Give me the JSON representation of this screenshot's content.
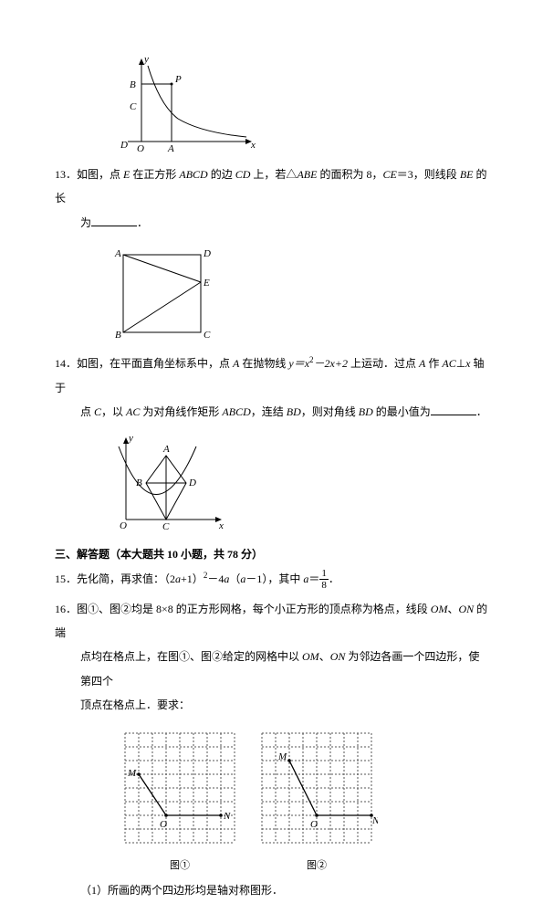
{
  "fig12": {
    "width": 165,
    "height": 108,
    "axis_color": "#000",
    "curve_color": "#000",
    "labels": {
      "y": "y",
      "x": "x",
      "B": "B",
      "C": "C",
      "D": "D",
      "O": "O",
      "A": "A",
      "P": "P"
    }
  },
  "p13": {
    "number": "13．",
    "text_a": "如图，点 ",
    "E": "E",
    "text_b": " 在正方形 ",
    "ABCD": "ABCD",
    "text_c": " 的边 ",
    "CD": "CD",
    "text_d": " 上，若△",
    "ABE": "ABE",
    "text_e": " 的面积为 8，",
    "CE": "CE",
    "text_f": "＝3，则线段 ",
    "BE": "BE",
    "text_g": " 的长",
    "tail": "为",
    "period": "．"
  },
  "fig13": {
    "width": 120,
    "height": 108,
    "labels": {
      "A": "A",
      "D": "D",
      "E": "E",
      "B": "B",
      "C": "C"
    }
  },
  "p14": {
    "number": "14．",
    "text_a": "如图，在平面直角坐标系中，点 ",
    "A": "A",
    "text_b": " 在抛物线 ",
    "eq": "y＝x",
    "eq_sup": "2",
    "eq2": "－2x+2",
    "text_c": " 上运动．过点 ",
    "text_d": " 作 ",
    "AC": "AC",
    "perp": "⊥",
    "xaxis": "x",
    "text_e": " 轴于",
    "line2a": "点 ",
    "C": "C",
    "line2b": "，以 ",
    "line2c": " 为对角线作矩形 ",
    "ABCD": "ABCD",
    "line2d": "，连结 ",
    "BD": "BD",
    "line2e": "，则对角线 ",
    "line2f": " 的最小值为",
    "period": "．"
  },
  "fig14": {
    "width": 130,
    "height": 110,
    "labels": {
      "y": "y",
      "x": "x",
      "O": "O",
      "A": "A",
      "B": "B",
      "C": "C",
      "D": "D"
    }
  },
  "section3": "三、解答题（本大题共 10 小题，共 78 分）",
  "p15": {
    "number": "15．",
    "text_a": "先化简，再求值：（2",
    "a": "a",
    "text_b": "+1）",
    "sup": "2",
    "text_c": "－4",
    "text_d": "（",
    "text_e": "－1），其中 ",
    "text_f": "＝",
    "frac_num": "1",
    "frac_den": "8",
    "period": "．"
  },
  "p16": {
    "number": "16．",
    "text_a": "图①、图②均是 8×8 的正方形网格，每个小正方形的顶点称为格点，线段 ",
    "OM": "OM",
    "text_b": "、",
    "ON": "ON",
    "text_c": " 的端",
    "line2a": "点均在格点上，在图①、图②给定的网格中以 ",
    "line2b": "、",
    "line2c": " 为邻边各画一个四边形，使第四个",
    "line3": "顶点在格点上．要求："
  },
  "fig16": {
    "grid": {
      "cells": 8,
      "size": 15,
      "color": "#555",
      "dash": "2,2"
    },
    "labels": {
      "M": "M",
      "O": "O",
      "N": "N"
    },
    "cap1": "图①",
    "cap2": "图②"
  },
  "p16_1": {
    "num": "（1）",
    "text": "所画的两个四边形均是轴对称图形．"
  }
}
